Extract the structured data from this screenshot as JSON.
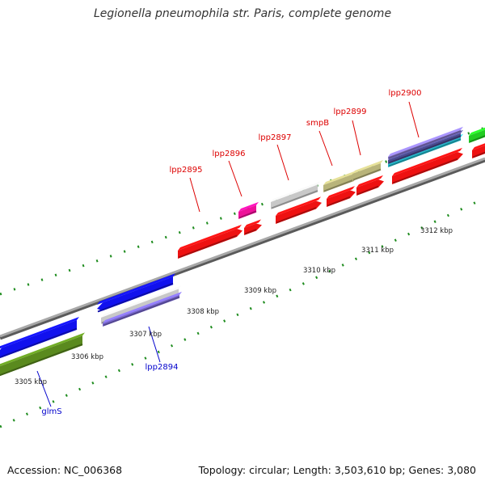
{
  "title": "Legionella pneumophila str. Paris, complete genome",
  "footer": {
    "accession": "Accession: NC_006368",
    "summary": "Topology: circular; Length: 3,503,610 bp; Genes: 3,080"
  },
  "colors": {
    "background": "#ffffff",
    "backbone": "#8a8a8a",
    "tick": "#1e8c1e",
    "label_red": "#dd0000",
    "label_blue": "#0000cc"
  },
  "gene_labels": [
    {
      "name": "lpp2895",
      "color": "red"
    },
    {
      "name": "lpp2896",
      "color": "red"
    },
    {
      "name": "lpp2897",
      "color": "red"
    },
    {
      "name": "smpB",
      "color": "red"
    },
    {
      "name": "lpp2899",
      "color": "red"
    },
    {
      "name": "lpp2900",
      "color": "red"
    },
    {
      "name": "lpp2894",
      "color": "blue"
    },
    {
      "name": "glmS",
      "color": "blue"
    }
  ],
  "scale_labels": [
    "3305 kbp",
    "3306 kbp",
    "3307 kbp",
    "3308 kbp",
    "3309 kbp",
    "3310 kbp",
    "3311 kbp",
    "3312 kbp"
  ],
  "features": [
    {
      "id": "lpp2895-cds",
      "color": "#ee1111"
    },
    {
      "id": "lpp2896-cds",
      "color": "#ee1111"
    },
    {
      "id": "lpp2896-gene",
      "color": "#ee1199"
    },
    {
      "id": "lpp2897-cds",
      "color": "#ee1111"
    },
    {
      "id": "lpp2897-gene",
      "color": "#c8c8c8"
    },
    {
      "id": "smpB-cds",
      "color": "#ee1111"
    },
    {
      "id": "smpB-gene",
      "color": "#b8b47a"
    },
    {
      "id": "lpp2899-cds",
      "color": "#ee1111"
    },
    {
      "id": "lpp2899-gene",
      "color": "#b8b47a"
    },
    {
      "id": "lpp2900-cds",
      "color": "#ee1111"
    },
    {
      "id": "lpp2900-gene-cyan",
      "color": "#22bbcc"
    },
    {
      "id": "lpp2900-gene-navy",
      "color": "#4a4a90"
    },
    {
      "id": "lpp2900-gene-violet",
      "color": "#8877cc"
    },
    {
      "id": "next-gene-green",
      "color": "#22cc22"
    },
    {
      "id": "next-cds-red",
      "color": "#ee1111"
    },
    {
      "id": "lpp2894-cds",
      "color": "#1111ee"
    },
    {
      "id": "lpp2894-gene",
      "color": "#c8c8c8"
    },
    {
      "id": "lpp2894-gene-violet",
      "color": "#7766cc"
    },
    {
      "id": "glmS-cds",
      "color": "#1111ee"
    },
    {
      "id": "glmS-gene",
      "color": "#5a8a1e"
    }
  ]
}
